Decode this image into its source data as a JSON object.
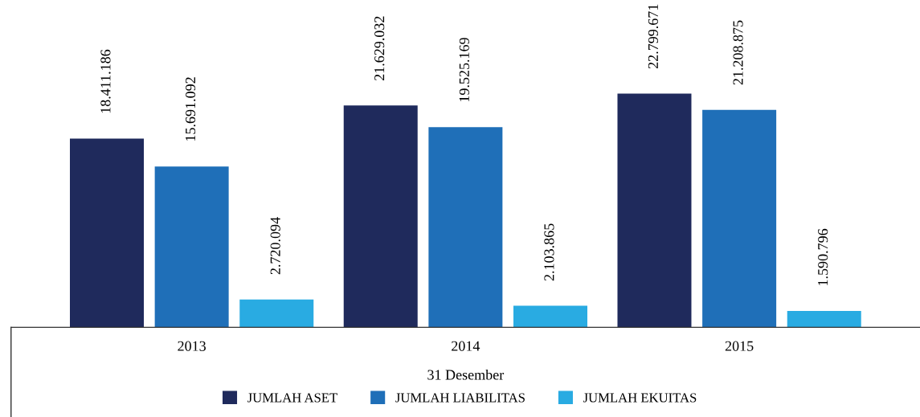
{
  "chart_data": {
    "type": "bar",
    "xlabel": "31 Desember",
    "categories": [
      "2013",
      "2014",
      "2015"
    ],
    "series": [
      {
        "name": "JUMLAH ASET",
        "color": "#1f2a5c",
        "values": [
          18411186,
          21629032,
          22799671
        ],
        "value_labels": [
          "18.411.186",
          "21.629.032",
          "22.799.671"
        ]
      },
      {
        "name": "JUMLAH LIABILITAS",
        "color": "#1f6fb8",
        "values": [
          15691092,
          19525169,
          21208875
        ],
        "value_labels": [
          "15.691.092",
          "19.525.169",
          "21.208.875"
        ]
      },
      {
        "name": "JUMLAH EKUITAS",
        "color": "#29abe2",
        "values": [
          2720094,
          2103865,
          1590796
        ],
        "value_labels": [
          "2.720.094",
          "2.103.865",
          "1.590.796"
        ]
      }
    ],
    "legend": "bottom",
    "tick_labels": "x"
  }
}
